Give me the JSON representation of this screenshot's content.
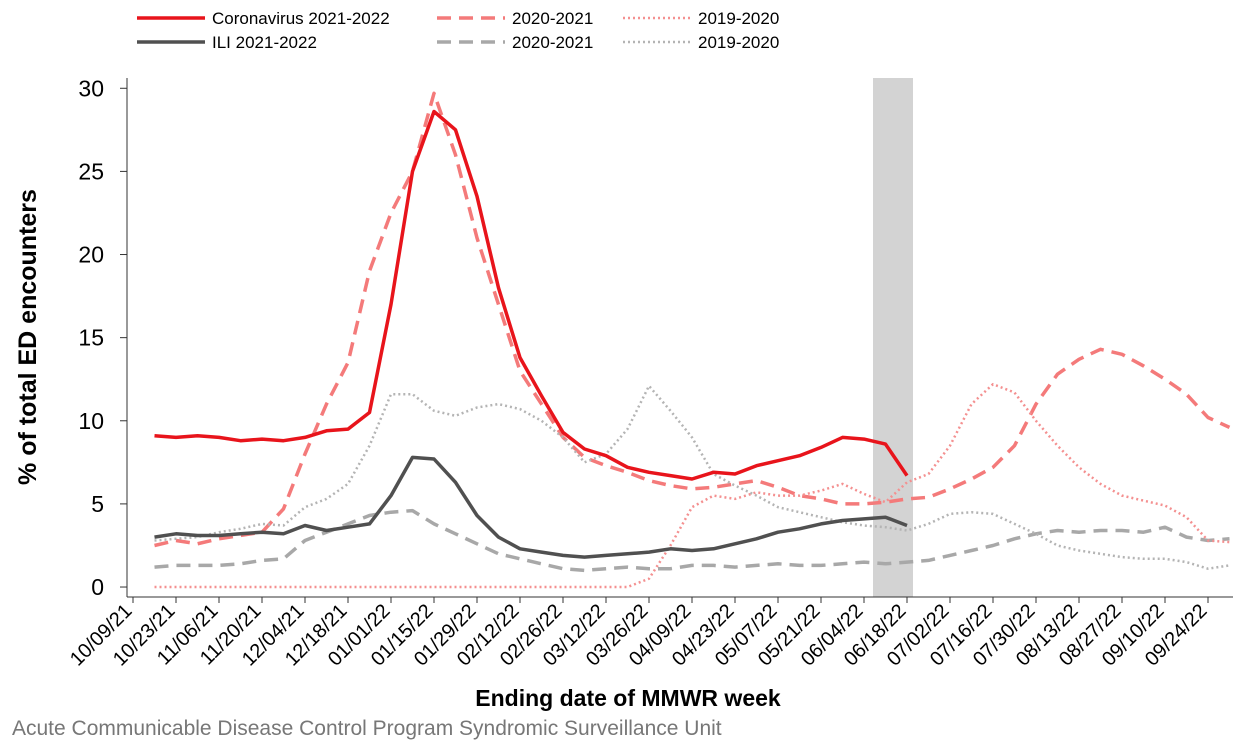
{
  "chart_data": {
    "type": "line",
    "x_label": "Ending date of MMWR week",
    "y_label": "% of total ED encounters",
    "source": "Acute Communicable Disease Control Program Syndromic Surveillance Unit",
    "categories": [
      "10/09/21",
      null,
      "10/23/21",
      null,
      "11/06/21",
      null,
      "11/20/21",
      null,
      "12/04/21",
      null,
      "12/18/21",
      null,
      "01/01/22",
      null,
      "01/15/22",
      null,
      "01/29/22",
      null,
      "02/12/22",
      null,
      "02/26/22",
      null,
      "03/12/22",
      null,
      "03/26/22",
      null,
      "04/09/22",
      null,
      "04/23/22",
      null,
      "05/07/22",
      null,
      "05/21/22",
      null,
      "06/04/22",
      null,
      "06/18/22",
      null,
      "07/02/22",
      null,
      "07/16/22",
      null,
      "07/30/22",
      null,
      "08/13/22",
      null,
      "08/27/22",
      null,
      "09/10/22",
      null,
      "09/24/22",
      null
    ],
    "ylim": [
      -0.6,
      30.6
    ],
    "yticks": [
      0,
      5,
      10,
      15,
      20,
      25,
      30
    ],
    "series": [
      {
        "name": "Coronavirus 2021-2022",
        "color": "#e8141b",
        "style": "solid",
        "values": [
          null,
          9.1,
          9.0,
          9.1,
          9.0,
          8.8,
          8.9,
          8.8,
          9.0,
          9.4,
          9.5,
          10.5,
          17,
          25,
          28.6,
          27.5,
          23.5,
          18,
          13.8,
          11.5,
          9.3,
          8.3,
          7.9,
          7.2,
          6.9,
          6.7,
          6.5,
          6.9,
          6.8,
          7.3,
          7.6,
          7.9,
          8.4,
          9.0,
          8.9,
          8.6,
          6.7,
          null,
          null,
          null,
          null,
          null,
          null,
          null,
          null,
          null,
          null,
          null,
          null,
          null,
          null,
          null
        ]
      },
      {
        "name": "ILI 2021-2022",
        "color": "#505050",
        "style": "solid",
        "values": [
          null,
          3.0,
          3.2,
          3.1,
          3.1,
          3.2,
          3.3,
          3.2,
          3.7,
          3.4,
          3.6,
          3.8,
          5.5,
          7.8,
          7.7,
          6.3,
          4.3,
          3.0,
          2.3,
          2.1,
          1.9,
          1.8,
          1.9,
          2.0,
          2.1,
          2.3,
          2.2,
          2.3,
          2.6,
          2.9,
          3.3,
          3.5,
          3.8,
          4.0,
          4.1,
          4.2,
          3.7,
          null,
          null,
          null,
          null,
          null,
          null,
          null,
          null,
          null,
          null,
          null,
          null,
          null,
          null,
          null
        ]
      },
      {
        "name": "2020-2021",
        "color": "#f47a7a",
        "style": "dashed",
        "values": [
          null,
          2.5,
          2.8,
          2.6,
          2.9,
          3.1,
          3.3,
          4.7,
          8,
          11,
          13.5,
          19,
          22.5,
          25,
          29.7,
          26,
          21,
          17,
          13,
          11,
          9,
          7.8,
          7.3,
          6.9,
          6.4,
          6.1,
          5.9,
          6.0,
          6.2,
          6.4,
          6.0,
          5.5,
          5.3,
          5.0,
          5.0,
          5.1,
          5.3,
          5.4,
          5.9,
          6.5,
          7.2,
          8.5,
          11,
          12.8,
          13.7,
          14.3,
          14.0,
          13.3,
          12.5,
          11.6,
          10.2,
          9.6
        ]
      },
      {
        "name": "2020-2021",
        "color": "#a8a8a8",
        "style": "dashed",
        "values": [
          null,
          1.2,
          1.3,
          1.3,
          1.3,
          1.4,
          1.6,
          1.7,
          2.8,
          3.3,
          3.8,
          4.3,
          4.5,
          4.6,
          3.8,
          3.2,
          2.6,
          2.0,
          1.7,
          1.4,
          1.1,
          1.0,
          1.1,
          1.2,
          1.1,
          1.1,
          1.3,
          1.3,
          1.2,
          1.3,
          1.4,
          1.3,
          1.3,
          1.4,
          1.5,
          1.4,
          1.5,
          1.6,
          1.9,
          2.2,
          2.5,
          2.9,
          3.2,
          3.4,
          3.3,
          3.4,
          3.4,
          3.3,
          3.6,
          3.0,
          2.8,
          2.9
        ]
      },
      {
        "name": "2019-2020",
        "color": "#f49090",
        "style": "dotted",
        "values": [
          null,
          0,
          0,
          0,
          0,
          0,
          0,
          0,
          0,
          0,
          0,
          0,
          0,
          0,
          0,
          0,
          0,
          0,
          0,
          0,
          0,
          0,
          0,
          0,
          0.5,
          2.5,
          4.8,
          5.5,
          5.3,
          5.7,
          5.5,
          5.5,
          5.8,
          6.2,
          5.6,
          5.1,
          6.3,
          6.8,
          8.5,
          11,
          12.2,
          11.7,
          10,
          8.5,
          7.2,
          6.2,
          5.5,
          5.2,
          4.9,
          4.2,
          2.8,
          2.7
        ]
      },
      {
        "name": "2019-2020",
        "color": "#b4b4b4",
        "style": "dotted",
        "values": [
          null,
          2.8,
          2.9,
          3.0,
          3.3,
          3.5,
          3.8,
          3.7,
          4.8,
          5.3,
          6.2,
          8.5,
          11.6,
          11.6,
          10.6,
          10.3,
          10.8,
          11.0,
          10.7,
          10.0,
          9.0,
          7.5,
          8.0,
          9.5,
          12.1,
          10.6,
          9.0,
          6.8,
          6.1,
          5.5,
          4.8,
          4.5,
          4.2,
          3.9,
          3.7,
          3.6,
          3.4,
          3.8,
          4.4,
          4.5,
          4.4,
          3.8,
          3.2,
          2.5,
          2.2,
          2.0,
          1.8,
          1.7,
          1.7,
          1.5,
          1.1,
          1.3
        ]
      }
    ]
  }
}
